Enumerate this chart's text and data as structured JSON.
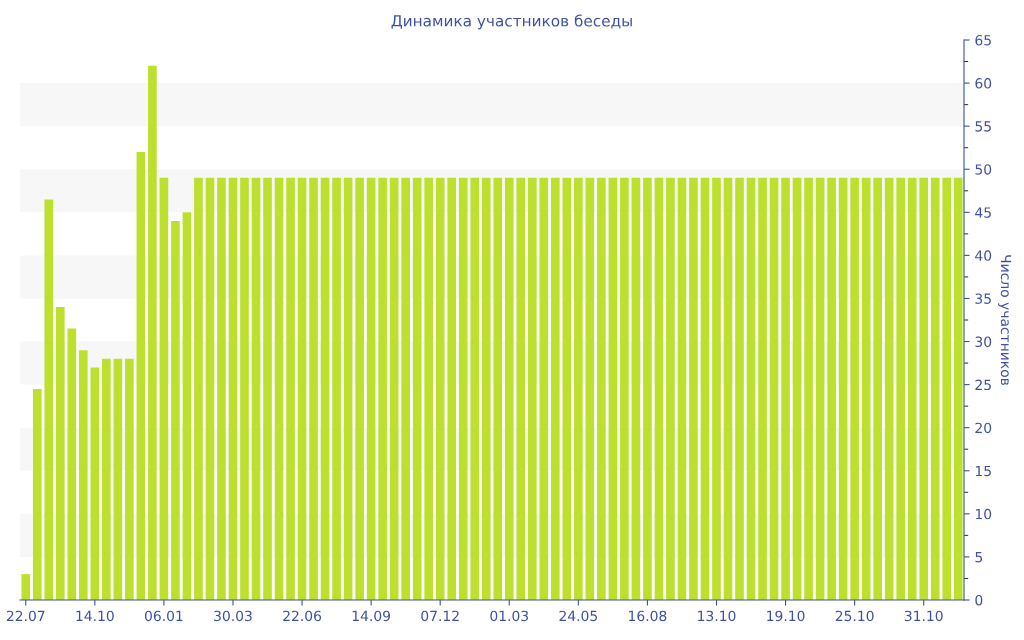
{
  "chart_data": {
    "type": "bar",
    "title": "Динамика участников беседы",
    "ylabel": "Число участников",
    "categories": [
      "22.07",
      null,
      null,
      null,
      null,
      null,
      "14.10",
      null,
      null,
      null,
      null,
      null,
      "06.01",
      null,
      null,
      null,
      null,
      null,
      "30.03",
      null,
      null,
      null,
      null,
      null,
      "22.06",
      null,
      null,
      null,
      null,
      null,
      "14.09",
      null,
      null,
      null,
      null,
      null,
      "07.12",
      null,
      null,
      null,
      null,
      null,
      "01.03",
      null,
      null,
      null,
      null,
      null,
      "24.05",
      null,
      null,
      null,
      null,
      null,
      "16.08",
      null,
      null,
      null,
      null,
      null,
      "13.10",
      null,
      null,
      null,
      null,
      null,
      "19.10",
      null,
      null,
      null,
      null,
      null,
      "25.10",
      null,
      null,
      null,
      null,
      null,
      "31.10",
      null,
      null,
      null
    ],
    "values": [
      3,
      24.5,
      46.5,
      34,
      31.5,
      29,
      27,
      28,
      28,
      28,
      52,
      62,
      49,
      44,
      45,
      49,
      49,
      49,
      49,
      49,
      49,
      49,
      49,
      49,
      49,
      49,
      49,
      49,
      49,
      49,
      49,
      49,
      49,
      49,
      49,
      49,
      49,
      49,
      49,
      49,
      49,
      49,
      49,
      49,
      49,
      49,
      49,
      49,
      49,
      49,
      49,
      49,
      49,
      49,
      49,
      49,
      49,
      49,
      49,
      49,
      49,
      49,
      49,
      49,
      49,
      49,
      49,
      49,
      49,
      49,
      49,
      49,
      49,
      49,
      49,
      49,
      49,
      49,
      49,
      49,
      49,
      49
    ],
    "color": "#bde02e",
    "ylim": [
      0,
      65
    ],
    "yticks": [
      0,
      5,
      10,
      15,
      20,
      25,
      30,
      35,
      40,
      45,
      50,
      55,
      60,
      65
    ],
    "legend": false,
    "bands": [
      {
        "axis": "y",
        "from": 5,
        "to": 10,
        "color": "#f7f7f7"
      },
      {
        "axis": "y",
        "from": 15,
        "to": 20,
        "color": "#f7f7f7"
      },
      {
        "axis": "y",
        "from": 25,
        "to": 30,
        "color": "#f7f7f7"
      },
      {
        "axis": "y",
        "from": 35,
        "to": 40,
        "color": "#f7f7f7"
      },
      {
        "axis": "y",
        "from": 45,
        "to": 50,
        "color": "#f7f7f7"
      },
      {
        "axis": "y",
        "from": 55,
        "to": 60,
        "color": "#f7f7f7"
      }
    ]
  }
}
